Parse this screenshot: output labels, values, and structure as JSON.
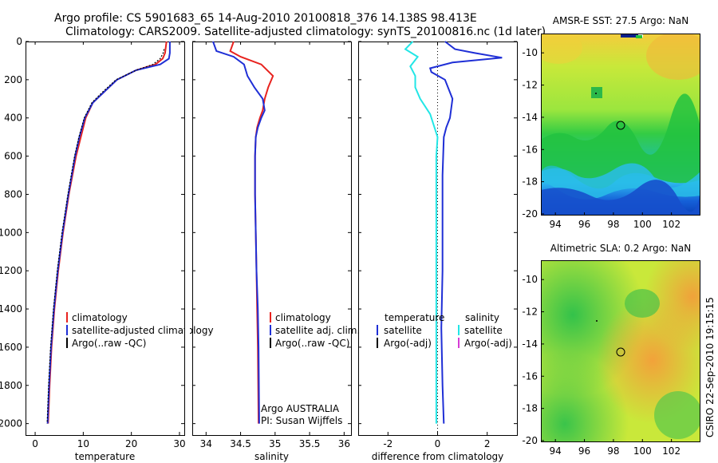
{
  "header": {
    "line1": "Argo profile: CS 5901683_65 14-Aug-2010 20100818_376 14.138S 98.413E",
    "line2": "Climatology: CARS2009. Satellite-adjusted climatology: synTS_20100816.nc (1d later)"
  },
  "stamp": "CSIRO 22-Sep-2010 19:15:15",
  "colors": {
    "climatology": "#e8231f",
    "satellite": "#1f2fd6",
    "argo": "#000000",
    "cyan": "#22e6e6",
    "magenta": "#d63cd6"
  },
  "chart_data": [
    {
      "type": "line",
      "xlabel": "temperature",
      "ylabel": "",
      "xlim": [
        -2,
        31
      ],
      "ylim": [
        2060,
        0
      ],
      "xticks": [
        "0",
        "10",
        "20",
        "30"
      ],
      "xtick_values": [
        0,
        10,
        20,
        30
      ],
      "yticks": [
        "0",
        "200",
        "400",
        "600",
        "800",
        "1000",
        "1200",
        "1400",
        "1600",
        "1800",
        "2000"
      ],
      "ytick_values": [
        0,
        200,
        400,
        600,
        800,
        1000,
        1200,
        1400,
        1600,
        1800,
        2000
      ],
      "legend": [
        "climatology",
        "satellite-adjusted climatology",
        "Argo(..raw -QC)"
      ],
      "series": [
        {
          "name": "climatology",
          "color": "#e8231f",
          "x": [
            27.3,
            27.0,
            26.5,
            25,
            21,
            17,
            14.5,
            12,
            10.5,
            9.5,
            8.5,
            7,
            5.8,
            4.8,
            4,
            3.4,
            3.0,
            2.7
          ],
          "y": [
            0,
            60,
            90,
            120,
            150,
            200,
            260,
            320,
            400,
            500,
            600,
            800,
            1000,
            1200,
            1400,
            1600,
            1800,
            2000
          ]
        },
        {
          "name": "satellite-adjusted climatology",
          "color": "#1f2fd6",
          "x": [
            28.0,
            28.0,
            27.8,
            26,
            21,
            17,
            14.5,
            12,
            10.3,
            9.2,
            8.3,
            6.9,
            5.7,
            4.7,
            3.9,
            3.3,
            2.9,
            2.6
          ],
          "y": [
            0,
            60,
            90,
            120,
            150,
            200,
            260,
            320,
            400,
            500,
            600,
            800,
            1000,
            1200,
            1400,
            1600,
            1800,
            2000
          ]
        },
        {
          "name": "Argo(..raw -QC)",
          "color": "#000000",
          "x": [
            26.8,
            26.6,
            26.0,
            24.5,
            21,
            16.8,
            14.2,
            11.8,
            10.2,
            9.1,
            8.2,
            6.8,
            5.6,
            4.6,
            3.8,
            3.2,
            2.8,
            2.5
          ],
          "y": [
            40,
            60,
            90,
            120,
            150,
            200,
            260,
            320,
            400,
            500,
            600,
            800,
            1000,
            1200,
            1400,
            1600,
            1800,
            2000
          ]
        }
      ]
    },
    {
      "type": "line",
      "xlabel": "salinity",
      "xlim": [
        33.8,
        36.1
      ],
      "ylim": [
        2060,
        0
      ],
      "xticks": [
        "34",
        "34.5",
        "35",
        "35.5",
        "36"
      ],
      "xtick_values": [
        34,
        34.5,
        35,
        35.5,
        36
      ],
      "legend": [
        "climatology",
        "satellite adj. clim.",
        "Argo(..raw -QC)"
      ],
      "annotation": [
        "Argo AUSTRALIA",
        "PI: Susan Wijffels"
      ],
      "series": [
        {
          "name": "climatology",
          "color": "#e8231f",
          "x": [
            34.4,
            34.35,
            34.5,
            34.8,
            34.97,
            34.9,
            34.85,
            34.82,
            34.78,
            34.74,
            34.72,
            34.71,
            34.71,
            34.72,
            34.73,
            34.74,
            34.75,
            34.76
          ],
          "y": [
            0,
            50,
            80,
            120,
            180,
            240,
            300,
            360,
            400,
            450,
            500,
            600,
            800,
            1000,
            1200,
            1400,
            1600,
            2000
          ]
        },
        {
          "name": "satellite adj. clim.",
          "color": "#1f2fd6",
          "x": [
            34.1,
            34.15,
            34.4,
            34.55,
            34.6,
            34.7,
            34.82,
            34.85,
            34.8,
            34.75,
            34.72,
            34.71,
            34.71,
            34.72,
            34.73,
            34.75,
            34.76,
            34.77
          ],
          "y": [
            0,
            50,
            80,
            120,
            180,
            240,
            300,
            360,
            400,
            450,
            500,
            600,
            800,
            1000,
            1200,
            1400,
            1600,
            2000
          ]
        }
      ]
    },
    {
      "type": "line",
      "xlabel": "difference from climatology",
      "xlim": [
        -3.2,
        3.2
      ],
      "ylim": [
        2060,
        0
      ],
      "xticks": [
        "-2",
        "0",
        "2"
      ],
      "xtick_values": [
        -2,
        0,
        2
      ],
      "legend_temperature": [
        "temperature",
        "satellite",
        "Argo(-adj)"
      ],
      "legend_salinity": [
        "salinity",
        "satellite",
        "Argo(-adj)"
      ],
      "series": [
        {
          "name": "temperature satellite",
          "color": "#1f2fd6",
          "x": [
            0.3,
            0.7,
            1.5,
            2.6,
            0.6,
            -0.3,
            -0.25,
            0.3,
            0.6,
            0.5,
            0.35,
            0.25,
            0.2,
            0.2,
            0.2,
            0.15,
            0.2,
            0.25
          ],
          "y": [
            0,
            40,
            60,
            85,
            110,
            140,
            160,
            200,
            300,
            400,
            450,
            500,
            700,
            1000,
            1200,
            1500,
            1800,
            2000
          ]
        },
        {
          "name": "salinity satellite",
          "color": "#22e6e6",
          "x": [
            -1.0,
            -1.3,
            -0.8,
            -1.1,
            -0.9,
            -0.9,
            -0.7,
            -0.3,
            0.0,
            -0.05,
            -0.05,
            -0.05,
            -0.05,
            -0.05,
            -0.05,
            -0.05
          ],
          "y": [
            0,
            40,
            80,
            130,
            180,
            240,
            300,
            380,
            500,
            600,
            700,
            900,
            1200,
            1500,
            1800,
            2000
          ]
        }
      ]
    }
  ],
  "maps": [
    {
      "title": "AMSR-E SST: 27.5 Argo: NaN",
      "xticks": [
        "94",
        "96",
        "98",
        "100",
        "102"
      ],
      "yticks": [
        "-10",
        "-12",
        "-14",
        "-16",
        "-18",
        "-20"
      ]
    },
    {
      "title": "Altimetric SLA: 0.2 Argo: NaN",
      "xticks": [
        "94",
        "96",
        "98",
        "100",
        "102"
      ],
      "yticks": [
        "-10",
        "-12",
        "-14",
        "-16",
        "-18",
        "-20"
      ]
    }
  ]
}
